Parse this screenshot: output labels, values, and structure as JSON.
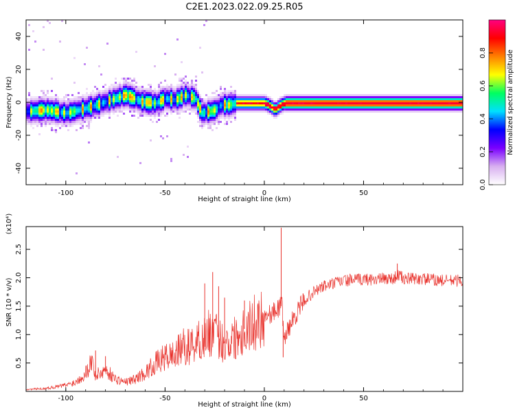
{
  "figure": {
    "title": "C2E1.2023.022.09.25.R05"
  },
  "chart_data": [
    {
      "type": "heatmap",
      "title": "C2E1.2023.022.09.25.R05",
      "xlabel": "Height of straight line (km)",
      "ylabel": "Frequency (Hz)",
      "xlim": [
        -120,
        100
      ],
      "ylim": [
        -50,
        50
      ],
      "xticks": [
        -100,
        -50,
        0,
        50
      ],
      "yticks": [
        -40,
        -20,
        0,
        20,
        40
      ],
      "colorbar": {
        "label": "Normalized spectral amplitude",
        "range": [
          0,
          1
        ],
        "ticks": [
          "0.0",
          "0.2",
          "0.4",
          "0.6",
          "0.8"
        ],
        "colormap": [
          "#ffffff",
          "#d8b0f0",
          "#7a00ff",
          "#0000ff",
          "#00e0ff",
          "#00ff60",
          "#ffff00",
          "#ff8000",
          "#ff0000",
          "#ff0080"
        ]
      },
      "ridge": {
        "x": [
          -120,
          -110,
          -100,
          -90,
          -80,
          -70,
          -62,
          -55,
          -50,
          -45,
          -40,
          -35,
          -32,
          -28,
          -25,
          -22,
          -18,
          -15,
          -10,
          -5,
          0,
          3,
          5,
          8,
          10,
          15,
          20,
          30,
          40,
          50,
          60,
          70,
          80,
          90,
          100
        ],
        "y": [
          -5,
          -4,
          -6,
          -3,
          1,
          5,
          1,
          0,
          3,
          2,
          5,
          3,
          -6,
          -5,
          -4,
          -1,
          -1,
          0,
          0,
          0,
          0,
          -2,
          -4,
          -1,
          0,
          0,
          0,
          0,
          0,
          0,
          0,
          0,
          0,
          0,
          0
        ]
      }
    },
    {
      "type": "line",
      "xlabel": "Height of straight line (km)",
      "ylabel": "SNR (10 * v/v)",
      "y_multiplier": "(x10⁴)",
      "color": "#e8302a",
      "xlim": [
        -120,
        100
      ],
      "ylim": [
        0,
        2.9
      ],
      "xticks": [
        -100,
        -50,
        0,
        50
      ],
      "yticks": [
        "0.5",
        "1.0",
        "1.5",
        "2.0",
        "2.5"
      ],
      "envelope": {
        "x": [
          -120,
          -110,
          -100,
          -95,
          -90,
          -87,
          -85,
          -80,
          -75,
          -70,
          -65,
          -60,
          -55,
          -50,
          -45,
          -40,
          -35,
          -30,
          -27,
          -25,
          -22,
          -20,
          -15,
          -10,
          -5,
          -2,
          2,
          5,
          8,
          9,
          10,
          12,
          15,
          20,
          25,
          30,
          40,
          50,
          60,
          65,
          68,
          70,
          80,
          90,
          100
        ],
        "y": [
          0.03,
          0.05,
          0.1,
          0.15,
          0.3,
          0.5,
          0.25,
          0.35,
          0.2,
          0.15,
          0.2,
          0.3,
          0.45,
          0.55,
          0.6,
          0.75,
          0.85,
          0.95,
          1.05,
          1.0,
          0.9,
          0.85,
          0.95,
          1.1,
          1.2,
          1.3,
          1.35,
          1.4,
          1.5,
          1.5,
          0.9,
          1.1,
          1.3,
          1.6,
          1.75,
          1.85,
          1.95,
          1.97,
          1.98,
          1.99,
          2.05,
          1.98,
          1.98,
          1.95,
          1.95
        ]
      },
      "spikes": [
        {
          "x": -85,
          "y": 0.72
        },
        {
          "x": -80,
          "y": 0.62
        },
        {
          "x": -50,
          "y": 0.68
        },
        {
          "x": -30,
          "y": 1.9
        },
        {
          "x": -26,
          "y": 2.1
        },
        {
          "x": -23,
          "y": 1.85
        },
        {
          "x": -20,
          "y": 1.65
        },
        {
          "x": -10,
          "y": 1.6
        },
        {
          "x": 8.5,
          "y": 2.88
        },
        {
          "x": 9.5,
          "y": 0.6
        },
        {
          "x": 67,
          "y": 2.25
        }
      ]
    }
  ]
}
